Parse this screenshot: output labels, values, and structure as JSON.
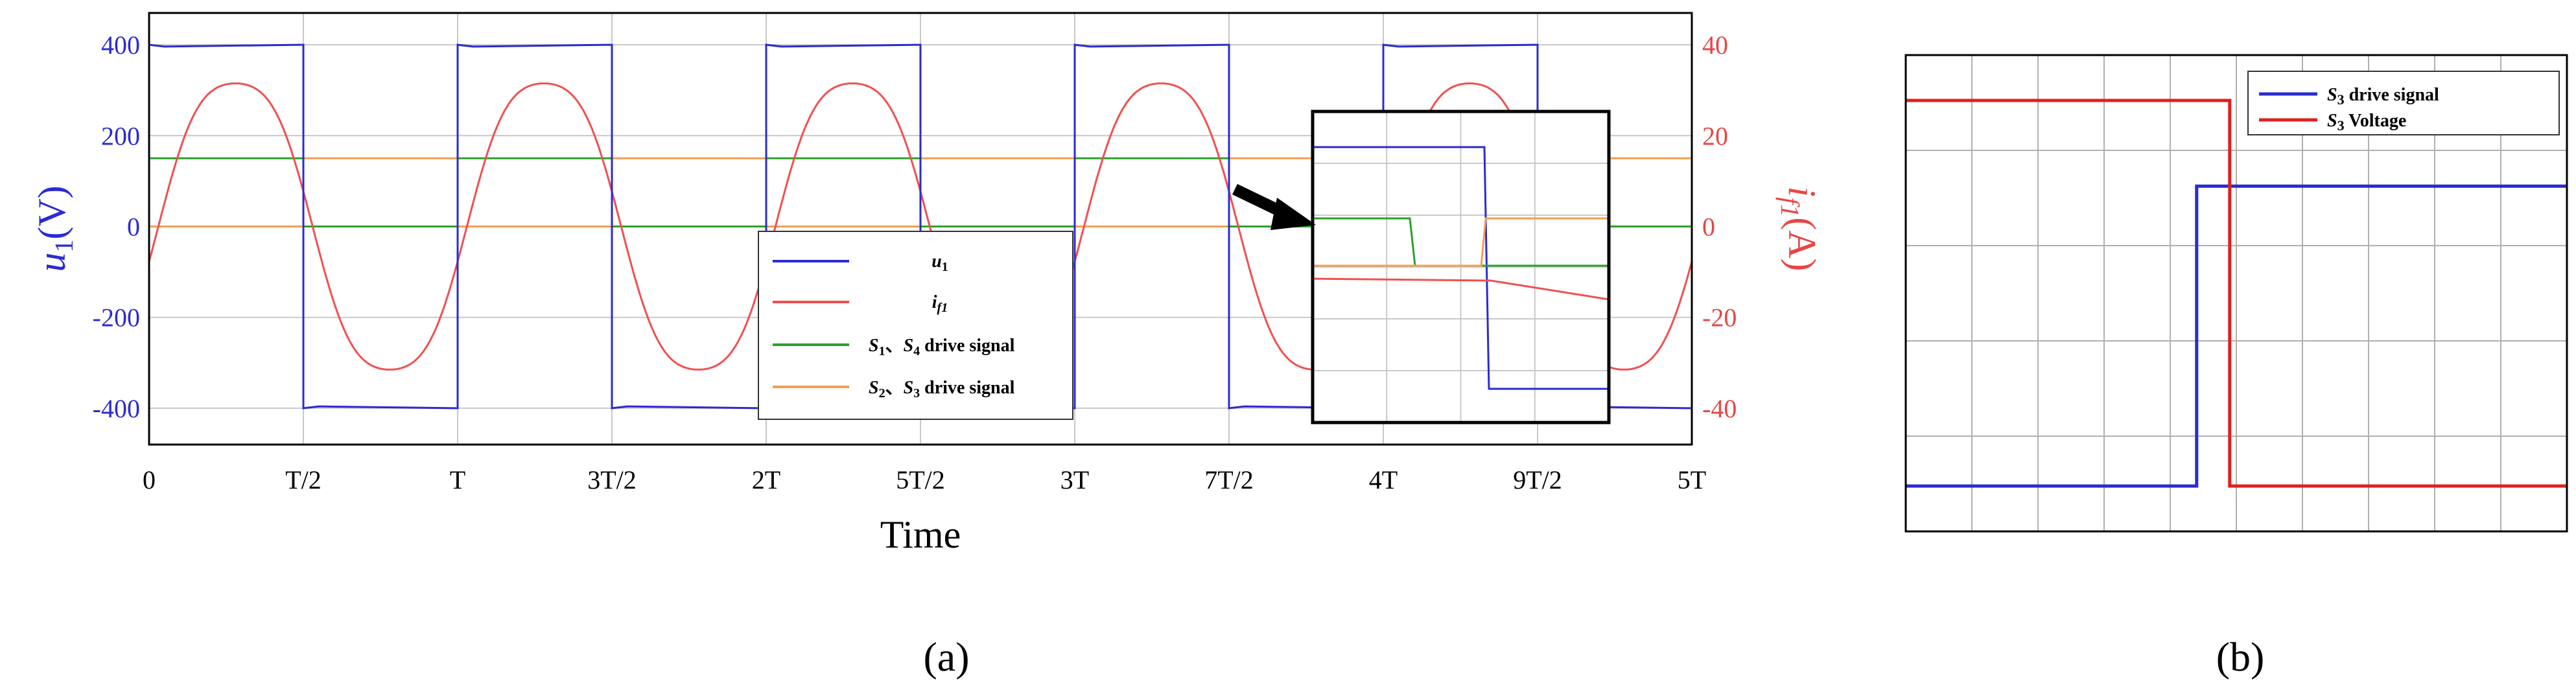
{
  "chart_data": [
    {
      "panel": "(a)",
      "type": "line",
      "xlabel": "Time",
      "x_ticks": [
        "0",
        "T/2",
        "T",
        "3T/2",
        "2T",
        "5T/2",
        "3T",
        "7T/2",
        "4T",
        "9T/2",
        "5T"
      ],
      "xlim": [
        0,
        5
      ],
      "y_left": {
        "label_main": "u",
        "label_sub": "1",
        "label_unit": "(V)",
        "color": "#2b2bd1",
        "ylim": [
          -480,
          470
        ],
        "ticks": [
          400,
          200,
          0,
          -200,
          -400
        ]
      },
      "y_right": {
        "label_main": "i",
        "label_sub": "f1",
        "label_unit": "(A)",
        "color": "#e84545",
        "ylim": [
          -48,
          47
        ],
        "ticks": [
          40,
          20,
          0,
          -20,
          -40
        ]
      },
      "series": [
        {
          "name_main": "u",
          "name_sub": "1",
          "name_rest": "",
          "color": "#2b2bd1",
          "axis": "left",
          "description": "square wave +/-400 V, switches every half period",
          "high": 400,
          "low": -400
        },
        {
          "name_main": "i",
          "name_sub": "f1",
          "name_rest": "",
          "color": "#f05050",
          "axis": "right",
          "description": "sinusoid, peak about 34 A, lagging voltage",
          "amplitude": 34
        },
        {
          "name_main": "S",
          "name_sub": "1",
          "name_sep": "、",
          "name_main2": "S",
          "name_sub2": "4",
          "name_rest": " drive signal",
          "color": "#2ca02c",
          "axis": "left",
          "high": 150,
          "low": 0
        },
        {
          "name_main": "S",
          "name_sub": "2",
          "name_sep": "、",
          "name_main2": "S",
          "name_sub2": "3",
          "name_rest": " drive signal",
          "color": "#f0a050",
          "axis": "left",
          "high": 150,
          "low": 0
        }
      ],
      "legend_position": "bottom-right",
      "grid": true,
      "inset": {
        "shows": "zoom of switching transition near 4T"
      }
    },
    {
      "panel": "(b)",
      "type": "line",
      "grid": true,
      "legend_position": "top-right",
      "series": [
        {
          "name_main": "S",
          "name_sub": "3",
          "name_rest": " drive signal",
          "color": "#2b2bd1",
          "steps": [
            {
              "x": 0.0,
              "y": 0.0
            },
            {
              "x": 0.44,
              "y": 0.0
            },
            {
              "x": 0.44,
              "y": 0.7
            },
            {
              "x": 1.0,
              "y": 0.7
            }
          ]
        },
        {
          "name_main": "S",
          "name_sub": "3",
          "name_rest": " Voltage",
          "color": "#e02020",
          "steps": [
            {
              "x": 0.0,
              "y": 0.9
            },
            {
              "x": 0.49,
              "y": 0.9
            },
            {
              "x": 0.49,
              "y": 0.0
            },
            {
              "x": 1.0,
              "y": 0.0
            }
          ]
        }
      ]
    }
  ],
  "captions": {
    "a": "(a)",
    "b": "(b)"
  }
}
